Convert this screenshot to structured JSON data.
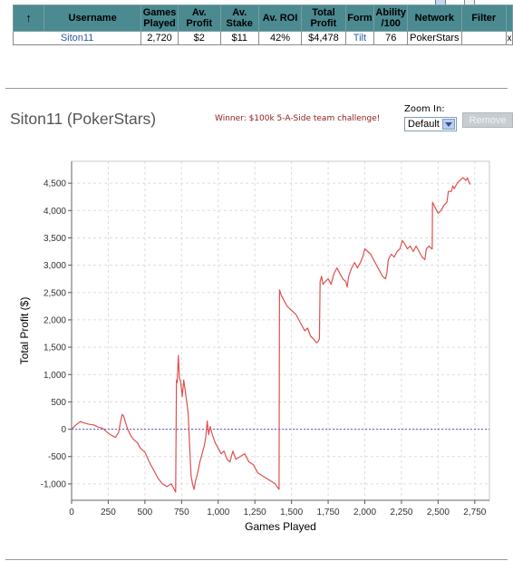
{
  "table": {
    "headers": {
      "sort": "↑",
      "username": "Username",
      "games_played": [
        "Games",
        "Played"
      ],
      "av_profit": [
        "Av.",
        "Profit"
      ],
      "av_stake": [
        "Av.",
        "Stake"
      ],
      "av_roi": "Av. ROI",
      "total_profit": [
        "Total",
        "Profit"
      ],
      "form": "Form",
      "ability": [
        "Ability",
        "/100"
      ],
      "network": "Network",
      "filter": "Filter"
    },
    "row": {
      "username": "Siton11",
      "games_played": "2,720",
      "av_profit": "$2",
      "av_stake": "$11",
      "av_roi": "42%",
      "total_profit": "$4,478",
      "form": "Tilt",
      "ability": "76",
      "network": "PokerStars",
      "filter": "",
      "remove": "x"
    }
  },
  "player_title": "Siton11 (PokerStars)",
  "winner_text": "Winner: $100k 5-A-Side team challenge!",
  "zoom": {
    "label": "Zoom In:",
    "selected": "Default"
  },
  "remove_label": "Remove",
  "colors": {
    "header_bg": "#4b8a91",
    "line": "#e05050",
    "zero_line": "#5555cc",
    "link": "#2b5aa8",
    "winner": "#8b1a1a"
  },
  "chart_data": {
    "type": "line",
    "xlabel": "Games Played",
    "ylabel": "Total Profit ($)",
    "xlim": [
      0,
      2850
    ],
    "ylim": [
      -1300,
      4900
    ],
    "xticks": [
      0,
      250,
      500,
      750,
      1000,
      1250,
      1500,
      1750,
      2000,
      2250,
      2500,
      2750
    ],
    "yticks": [
      -1000,
      -500,
      0,
      500,
      1000,
      1500,
      2000,
      2500,
      3000,
      3500,
      4000,
      4500
    ],
    "grid": true,
    "zero_line": true,
    "series": [
      {
        "points": [
          [
            0,
            0
          ],
          [
            30,
            80
          ],
          [
            60,
            140
          ],
          [
            90,
            110
          ],
          [
            120,
            90
          ],
          [
            150,
            80
          ],
          [
            180,
            40
          ],
          [
            210,
            20
          ],
          [
            240,
            -50
          ],
          [
            270,
            -110
          ],
          [
            300,
            -150
          ],
          [
            320,
            -60
          ],
          [
            335,
            150
          ],
          [
            345,
            270
          ],
          [
            355,
            240
          ],
          [
            365,
            150
          ],
          [
            380,
            20
          ],
          [
            400,
            -100
          ],
          [
            420,
            -180
          ],
          [
            450,
            -250
          ],
          [
            470,
            -350
          ],
          [
            500,
            -420
          ],
          [
            530,
            -600
          ],
          [
            560,
            -750
          ],
          [
            590,
            -900
          ],
          [
            620,
            -1000
          ],
          [
            650,
            -1050
          ],
          [
            680,
            -1000
          ],
          [
            700,
            -1100
          ],
          [
            710,
            -1150
          ],
          [
            715,
            900
          ],
          [
            720,
            850
          ],
          [
            728,
            1350
          ],
          [
            735,
            950
          ],
          [
            745,
            850
          ],
          [
            755,
            600
          ],
          [
            765,
            900
          ],
          [
            775,
            700
          ],
          [
            785,
            500
          ],
          [
            795,
            300
          ],
          [
            805,
            -300
          ],
          [
            815,
            -850
          ],
          [
            825,
            -1000
          ],
          [
            835,
            -1100
          ],
          [
            845,
            -950
          ],
          [
            860,
            -800
          ],
          [
            875,
            -600
          ],
          [
            890,
            -450
          ],
          [
            905,
            -300
          ],
          [
            915,
            -150
          ],
          [
            925,
            150
          ],
          [
            935,
            -100
          ],
          [
            945,
            50
          ],
          [
            960,
            -100
          ],
          [
            980,
            -250
          ],
          [
            1000,
            -350
          ],
          [
            1020,
            -450
          ],
          [
            1040,
            -400
          ],
          [
            1060,
            -550
          ],
          [
            1080,
            -600
          ],
          [
            1100,
            -400
          ],
          [
            1120,
            -550
          ],
          [
            1150,
            -500
          ],
          [
            1180,
            -450
          ],
          [
            1210,
            -600
          ],
          [
            1240,
            -650
          ],
          [
            1270,
            -800
          ],
          [
            1300,
            -850
          ],
          [
            1330,
            -900
          ],
          [
            1360,
            -950
          ],
          [
            1390,
            -1000
          ],
          [
            1400,
            -1050
          ],
          [
            1415,
            -1100
          ],
          [
            1418,
            2550
          ],
          [
            1430,
            2450
          ],
          [
            1450,
            2350
          ],
          [
            1470,
            2250
          ],
          [
            1490,
            2200
          ],
          [
            1510,
            2150
          ],
          [
            1530,
            2100
          ],
          [
            1550,
            2000
          ],
          [
            1570,
            1900
          ],
          [
            1590,
            1800
          ],
          [
            1610,
            1850
          ],
          [
            1630,
            1700
          ],
          [
            1650,
            1650
          ],
          [
            1670,
            1580
          ],
          [
            1680,
            1600
          ],
          [
            1690,
            1650
          ],
          [
            1695,
            2700
          ],
          [
            1705,
            2800
          ],
          [
            1715,
            2650
          ],
          [
            1730,
            2700
          ],
          [
            1750,
            2750
          ],
          [
            1770,
            2650
          ],
          [
            1790,
            2850
          ],
          [
            1810,
            2950
          ],
          [
            1830,
            2850
          ],
          [
            1850,
            2750
          ],
          [
            1870,
            2700
          ],
          [
            1880,
            2600
          ],
          [
            1890,
            2800
          ],
          [
            1910,
            2950
          ],
          [
            1930,
            3050
          ],
          [
            1950,
            2950
          ],
          [
            1970,
            3050
          ],
          [
            1985,
            3150
          ],
          [
            2000,
            3300
          ],
          [
            2020,
            3250
          ],
          [
            2040,
            3200
          ],
          [
            2060,
            3100
          ],
          [
            2080,
            3000
          ],
          [
            2100,
            2900
          ],
          [
            2120,
            2800
          ],
          [
            2140,
            2750
          ],
          [
            2150,
            2850
          ],
          [
            2160,
            3100
          ],
          [
            2180,
            3200
          ],
          [
            2200,
            3150
          ],
          [
            2220,
            3250
          ],
          [
            2240,
            3300
          ],
          [
            2255,
            3450
          ],
          [
            2270,
            3400
          ],
          [
            2290,
            3300
          ],
          [
            2310,
            3350
          ],
          [
            2330,
            3250
          ],
          [
            2350,
            3350
          ],
          [
            2370,
            3250
          ],
          [
            2390,
            3150
          ],
          [
            2410,
            3100
          ],
          [
            2420,
            3300
          ],
          [
            2440,
            3350
          ],
          [
            2455,
            3300
          ],
          [
            2460,
            3300
          ],
          [
            2462,
            4150
          ],
          [
            2480,
            4050
          ],
          [
            2500,
            3950
          ],
          [
            2520,
            4000
          ],
          [
            2540,
            4100
          ],
          [
            2560,
            4150
          ],
          [
            2570,
            4350
          ],
          [
            2590,
            4350
          ],
          [
            2600,
            4450
          ],
          [
            2610,
            4400
          ],
          [
            2630,
            4500
          ],
          [
            2650,
            4550
          ],
          [
            2670,
            4600
          ],
          [
            2690,
            4550
          ],
          [
            2700,
            4600
          ],
          [
            2710,
            4520
          ],
          [
            2720,
            4478
          ]
        ]
      }
    ]
  }
}
